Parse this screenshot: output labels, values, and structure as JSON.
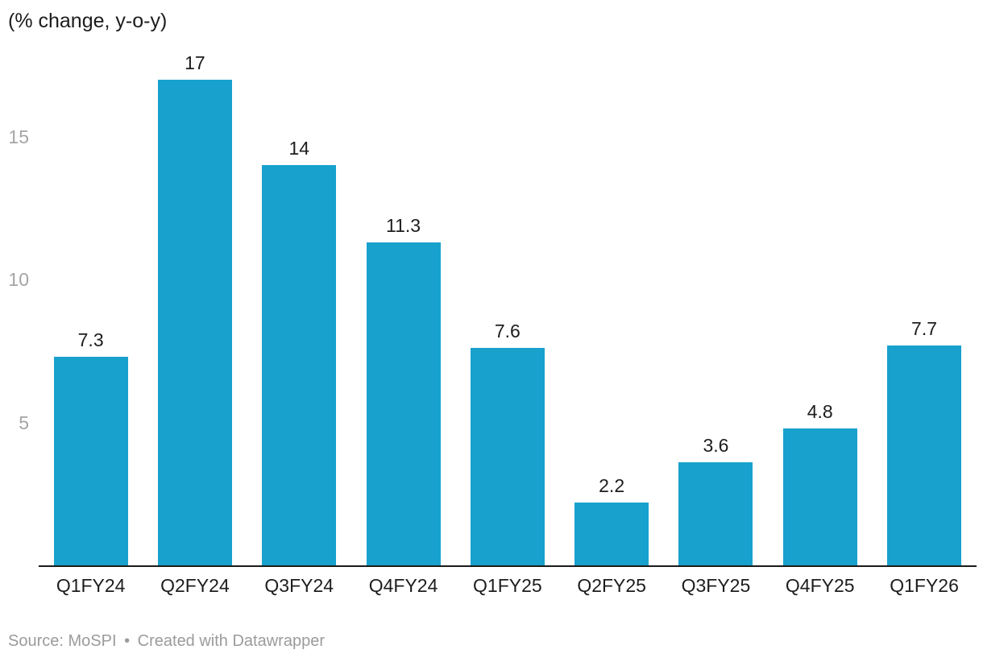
{
  "chart_data": {
    "type": "bar",
    "title": "(% change, y-o-y)",
    "categories": [
      "Q1FY24",
      "Q2FY24",
      "Q3FY24",
      "Q4FY24",
      "Q1FY25",
      "Q2FY25",
      "Q3FY25",
      "Q4FY25",
      "Q1FY26"
    ],
    "values": [
      7.3,
      17,
      14,
      11.3,
      7.6,
      2.2,
      3.6,
      4.8,
      7.7
    ],
    "value_labels": [
      "7.3",
      "17",
      "14",
      "11.3",
      "7.6",
      "2.2",
      "3.6",
      "4.8",
      "7.7"
    ],
    "xlabel": "",
    "ylabel": "",
    "yticks": [
      5,
      10,
      15
    ],
    "ylim": [
      0,
      17.5
    ],
    "grid": "off",
    "legend": "none",
    "bar_color": "#18a1cd",
    "axis_line_color": "#1a1a1a",
    "ytick_label_color": "#a5a5a5",
    "data_label_color": "#1d1d1d",
    "title_color": "#1c1c1c"
  },
  "footer": {
    "source": "Source: MoSPI",
    "separator": "•",
    "attribution": "Created with Datawrapper"
  }
}
